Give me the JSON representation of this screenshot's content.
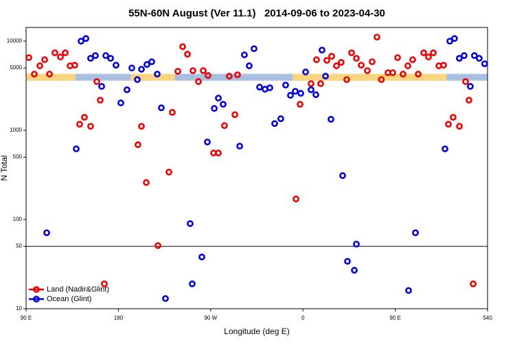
{
  "chart_data": {
    "type": "scatter",
    "title": "55N-60N August (Ver 11.1)   2014-09-06 to 2023-04-30",
    "x_label": "Longitude (deg E)",
    "y_label": "N Total",
    "log_y": true,
    "xlim": [
      90,
      540
    ],
    "ylim": [
      10,
      14250
    ],
    "xticks": [
      {
        "value": 90,
        "label": "90 E"
      },
      180,
      {
        "value": 270,
        "label": "90 W"
      },
      {
        "value": 360,
        "label": "0"
      },
      {
        "value": 450,
        "label": "90 E"
      },
      540
    ],
    "yticks": [
      10,
      50,
      100,
      500,
      1000,
      5000,
      10000
    ],
    "hline": 50,
    "band": {
      "range": [
        3600,
        4300
      ],
      "segments": [
        [
          90,
          138,
          "#f8d57e"
        ],
        [
          138,
          192,
          "#a9bfe0"
        ],
        [
          192,
          235,
          "#f8d57e"
        ],
        [
          235,
          350,
          "#a9bfe0"
        ],
        [
          350,
          500,
          "#f8d57e"
        ],
        [
          500,
          540,
          "#a9bfe0"
        ]
      ]
    },
    "legend": "lower left",
    "series": [
      {
        "name": "Land (Nadir&Glint)",
        "color": "#ee0000",
        "x": [
          92.7,
          98,
          103.4,
          108.1,
          112.8,
          118.1,
          123.5,
          128.2,
          132.9,
          137.5,
          142.2,
          146.9,
          152.9,
          159,
          162.3,
          166.3,
          199.1,
          202.5,
          207.2,
          218.6,
          229.3,
          232.6,
          238,
          242.7,
          247.4,
          252.7,
          258.1,
          262.8,
          267.4,
          272.8,
          277.5,
          283.5,
          288.2,
          293.6,
          296.2,
          353.2,
          357.2,
          367.9,
          373.2,
          377.3,
          383.3,
          388,
          392.7,
          397.3,
          402.7,
          407.4,
          412.1,
          416.8,
          422.8,
          427.5,
          432.2,
          436.5,
          442.9,
          447.6,
          452.3,
          457.6,
          462.3,
          467,
          472.4,
          477.7,
          482.4,
          487.1,
          492.5,
          497.2,
          501.9,
          506.5,
          512.6,
          518.6,
          521.9,
          526
        ],
        "values": [
          6540,
          4270,
          5290,
          6200,
          4270,
          7400,
          6650,
          7400,
          5290,
          5380,
          1170,
          1400,
          1110,
          3520,
          2180,
          19,
          690,
          1110,
          260,
          51,
          340,
          1590,
          4590,
          8680,
          7140,
          4670,
          3520,
          4670,
          4120,
          557,
          557,
          1130,
          4050,
          1500,
          4200,
          170,
          1960,
          3340,
          6200,
          3340,
          6090,
          6780,
          5290,
          5780,
          3710,
          7400,
          6420,
          5380,
          4670,
          5880,
          11100,
          3710,
          4430,
          4430,
          6540,
          4270,
          5290,
          6200,
          4270,
          7400,
          6650,
          7400,
          5290,
          5380,
          1170,
          1400,
          1110,
          3520,
          2180,
          19
        ]
      },
      {
        "name": "Ocean (Glint)",
        "color": "#0000dd",
        "x": [
          110.1,
          138.9,
          143.6,
          148.3,
          152.9,
          157.6,
          163.7,
          167.7,
          172.4,
          177.7,
          182.4,
          188.4,
          193.1,
          198.5,
          202.5,
          207.8,
          212.5,
          217.9,
          221.9,
          225.9,
          250,
          252,
          261.4,
          266.8,
          273.5,
          277.5,
          282.2,
          298.3,
          302.9,
          307.6,
          312.3,
          317.7,
          323,
          327.7,
          332.4,
          338.4,
          343.1,
          347.8,
          352.5,
          357.9,
          362.6,
          367.9,
          372.6,
          378.6,
          382,
          387.3,
          398.7,
          403.4,
          410.1,
          412.1,
          463,
          469.7,
          498.5,
          503.2,
          507.8,
          512.5,
          517.2,
          523.2,
          527.2,
          531.9,
          537.2
        ],
        "values": [
          71,
          620,
          10000,
          10700,
          6420,
          6890,
          3110,
          6890,
          6420,
          5380,
          2030,
          2850,
          5000,
          3710,
          4840,
          5470,
          5880,
          4270,
          1790,
          13,
          90,
          19,
          38,
          740,
          1760,
          2300,
          1960,
          665,
          7020,
          5290,
          8230,
          3050,
          2890,
          3000,
          1190,
          1350,
          3220,
          2470,
          2740,
          2600,
          4510,
          2850,
          2510,
          7940,
          4050,
          1330,
          311,
          34,
          27,
          53,
          16,
          71,
          620,
          10000,
          10700,
          6420,
          6890,
          3110,
          6890,
          6420,
          5570
        ]
      }
    ]
  }
}
